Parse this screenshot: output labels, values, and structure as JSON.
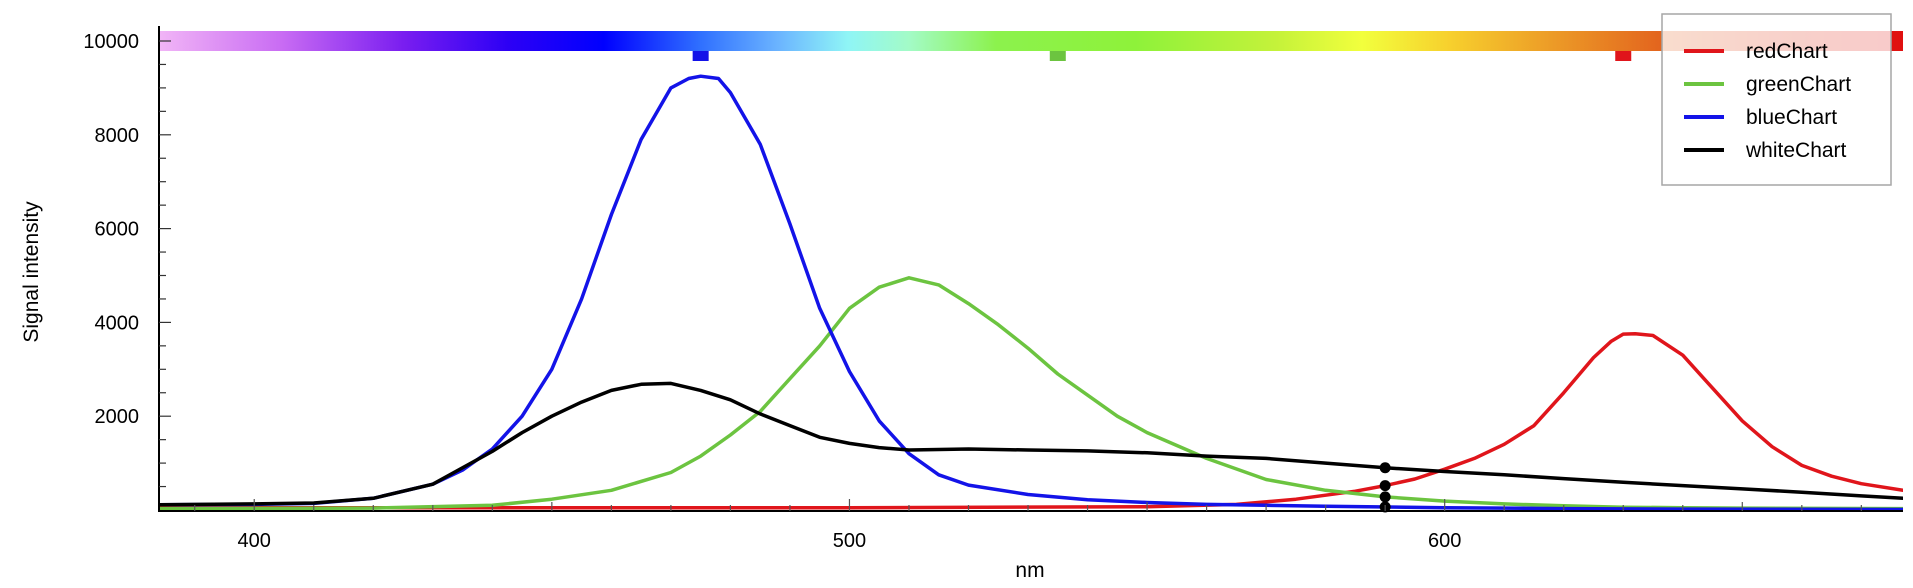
{
  "chart_data": {
    "type": "line",
    "title": "",
    "xlabel": "nm",
    "ylabel": "Signal intensity",
    "xlim": [
      384,
      677
    ],
    "ylim": [
      0,
      10000
    ],
    "x_ticks": [
      400,
      500,
      600
    ],
    "x_tick_labels": [
      "400",
      "500",
      "600"
    ],
    "y_ticks": [
      2000,
      4000,
      6000,
      8000,
      10000
    ],
    "y_tick_labels": [
      "2000",
      "4000",
      "6000",
      "8000",
      "10000"
    ],
    "grid": false,
    "legend_position": "top-right",
    "spectrum_bar": true,
    "cursor_x": 590,
    "series": [
      {
        "name": "redChart",
        "color": "#e0151b",
        "marker_nm": 630,
        "x": [
          384,
          500,
          550,
          565,
          575,
          585,
          590,
          595,
          600,
          605,
          610,
          615,
          620,
          625,
          628,
          630,
          632,
          635,
          640,
          645,
          650,
          655,
          660,
          665,
          670,
          677
        ],
        "y": [
          50,
          50,
          70,
          120,
          230,
          400,
          520,
          660,
          870,
          1100,
          1400,
          1800,
          2500,
          3250,
          3600,
          3750,
          3760,
          3720,
          3300,
          2600,
          1900,
          1350,
          950,
          720,
          560,
          420
        ]
      },
      {
        "name": "greenChart",
        "color": "#6cc440",
        "marker_nm": 535,
        "x": [
          384,
          420,
          440,
          450,
          460,
          470,
          475,
          480,
          485,
          490,
          495,
          500,
          505,
          510,
          515,
          520,
          525,
          530,
          535,
          540,
          545,
          550,
          560,
          570,
          580,
          590,
          600,
          610,
          620,
          630,
          640,
          650,
          677
        ],
        "y": [
          30,
          40,
          100,
          230,
          420,
          800,
          1150,
          1600,
          2100,
          2800,
          3500,
          4300,
          4750,
          4950,
          4800,
          4400,
          3950,
          3450,
          2900,
          2450,
          2000,
          1650,
          1100,
          650,
          420,
          280,
          190,
          130,
          90,
          60,
          50,
          40,
          30
        ]
      },
      {
        "name": "blueChart",
        "color": "#1313e8",
        "marker_nm": 475,
        "x": [
          384,
          400,
          410,
          420,
          430,
          435,
          440,
          445,
          450,
          455,
          460,
          465,
          470,
          473,
          475,
          478,
          480,
          485,
          490,
          495,
          500,
          505,
          510,
          515,
          520,
          530,
          540,
          550,
          560,
          570,
          580,
          600,
          620,
          640,
          677
        ],
        "y": [
          110,
          120,
          140,
          250,
          550,
          850,
          1300,
          2000,
          3000,
          4500,
          6300,
          7900,
          9000,
          9200,
          9250,
          9200,
          8900,
          7800,
          6100,
          4300,
          2950,
          1900,
          1200,
          750,
          530,
          330,
          220,
          160,
          120,
          100,
          80,
          50,
          30,
          20,
          10
        ]
      },
      {
        "name": "whiteChart",
        "color": "#000000",
        "marker_nm": null,
        "x": [
          384,
          400,
          410,
          420,
          430,
          440,
          445,
          450,
          455,
          460,
          465,
          470,
          475,
          480,
          485,
          490,
          495,
          500,
          505,
          510,
          520,
          530,
          540,
          550,
          560,
          570,
          580,
          590,
          600,
          610,
          620,
          630,
          640,
          650,
          660,
          670,
          677
        ],
        "y": [
          110,
          130,
          150,
          250,
          550,
          1250,
          1650,
          2000,
          2300,
          2550,
          2680,
          2700,
          2550,
          2350,
          2050,
          1800,
          1550,
          1420,
          1330,
          1280,
          1300,
          1280,
          1260,
          1220,
          1150,
          1100,
          1000,
          900,
          820,
          750,
          670,
          590,
          520,
          450,
          380,
          300,
          250
        ]
      }
    ]
  }
}
